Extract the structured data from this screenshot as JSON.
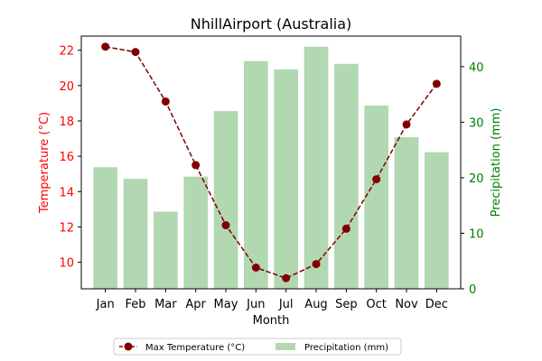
{
  "chart_data": {
    "type": "bar+line",
    "title": "NhillAirport (Australia)",
    "xlabel": "Month",
    "categories": [
      "Jan",
      "Feb",
      "Mar",
      "Apr",
      "May",
      "Jun",
      "Jul",
      "Aug",
      "Sep",
      "Oct",
      "Nov",
      "Dec"
    ],
    "left_axis": {
      "label": "Temperature (°C)",
      "color": "#ff0000",
      "ylim": [
        8.5,
        22.8
      ],
      "ticks": [
        10,
        12,
        14,
        16,
        18,
        20,
        22
      ],
      "tick_labels": [
        "10",
        "12",
        "14",
        "16",
        "18",
        "20",
        "22"
      ]
    },
    "right_axis": {
      "label": "Precipitation (mm)",
      "color": "#008000",
      "ylim": [
        0,
        45.5
      ],
      "ticks": [
        0,
        10,
        20,
        30,
        40
      ],
      "tick_labels": [
        "0",
        "10",
        "20",
        "30",
        "40"
      ]
    },
    "series": [
      {
        "name": "Max Temperature (°C)",
        "type": "line",
        "axis": "left",
        "color": "#800000",
        "style": "dashed-with-circle-markers",
        "values": [
          22.2,
          21.9,
          19.1,
          15.5,
          12.1,
          9.7,
          9.1,
          9.9,
          11.9,
          14.7,
          17.8,
          20.1
        ]
      },
      {
        "name": "Precipitation (mm)",
        "type": "bar",
        "axis": "right",
        "color": "#b2d8b2",
        "values": [
          21.9,
          19.8,
          13.9,
          20.2,
          32.0,
          41.0,
          39.5,
          43.6,
          40.5,
          33.0,
          27.3,
          24.6
        ]
      }
    ],
    "legend": {
      "placement": "bottom-center",
      "columns": 2
    },
    "grid": false
  }
}
